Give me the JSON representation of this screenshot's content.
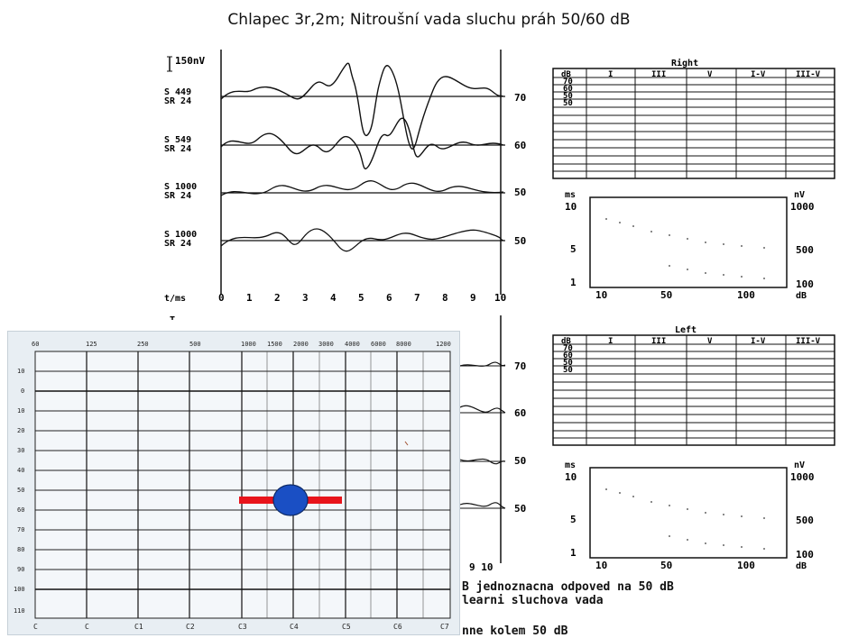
{
  "title": "Chlapec 3r,2m; Nitroušní vada sluchu práh 50/60 dB",
  "abr": {
    "scale_label": "150nV",
    "traces": [
      {
        "s": "S  449",
        "sr": "SR  24",
        "level": "70"
      },
      {
        "s": "S  549",
        "sr": "SR  24",
        "level": "60"
      },
      {
        "s": "S 1000",
        "sr": "SR  24",
        "level": "50"
      },
      {
        "s": "S 1000",
        "sr": "SR  24",
        "level": "50"
      }
    ],
    "time_label": "t/ms",
    "time_ticks": [
      "0",
      "1",
      "2",
      "3",
      "4",
      "5",
      "6",
      "7",
      "8",
      "9",
      "10"
    ],
    "lower_marker": "T",
    "lower_levels": [
      "70",
      "60",
      "50",
      "50"
    ],
    "lower_tick_tail": "9 10"
  },
  "tables": {
    "right_title": "Right",
    "left_title": "Left",
    "headers": [
      "dB",
      "I",
      "III",
      "V",
      "I-V",
      "III-V"
    ],
    "rows": [
      "70",
      "60",
      "50",
      "50"
    ]
  },
  "latency_graph": {
    "y_left_label": "ms",
    "y_left_ticks": [
      "10",
      "5",
      "1"
    ],
    "y_right_label": "nV",
    "y_right_ticks": [
      "1000",
      "500",
      "100"
    ],
    "x_ticks": [
      "10",
      "50",
      "100"
    ],
    "x_unit": "dB"
  },
  "audiogram": {
    "freq_labels": [
      "60",
      "125",
      "250",
      "500",
      "1000",
      "1500",
      "2000",
      "3000",
      "4000",
      "6000",
      "8000",
      "1200"
    ],
    "db_labels": [
      "10",
      "0",
      "10",
      "20",
      "30",
      "40",
      "50",
      "60",
      "70",
      "80",
      "90",
      "100",
      "110"
    ],
    "note_labels": [
      "C",
      "C",
      "C1",
      "C2",
      "C3",
      "C4",
      "C5",
      "C6",
      "C7"
    ],
    "marker_color": "#1a4fc4",
    "bar_color": "#e8141b",
    "threshold_db": 55
  },
  "notes": {
    "line1": "B jednoznacna odpoved na 50 dB",
    "line2": "learni sluchova vada",
    "line3": "nne kolem 50 dB"
  }
}
